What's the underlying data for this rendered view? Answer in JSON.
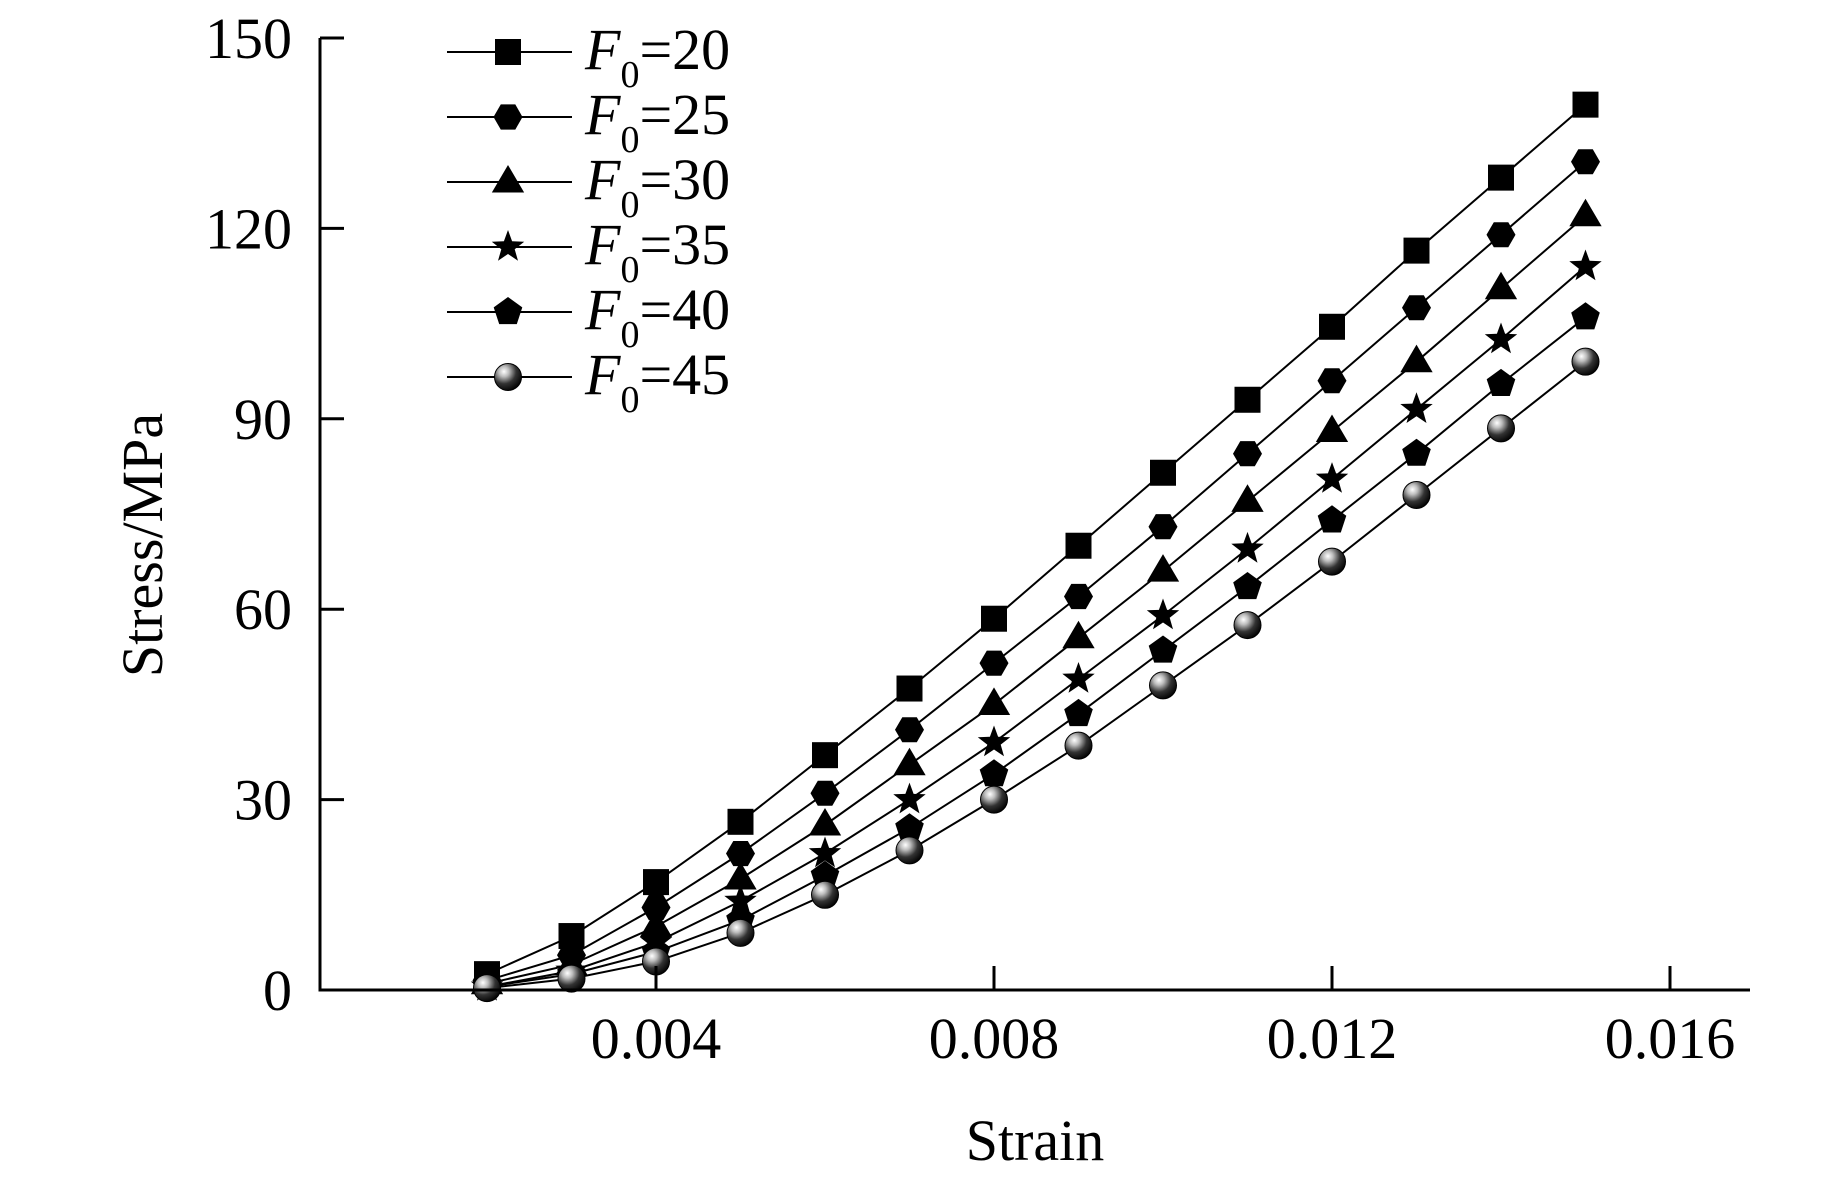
{
  "chart_data": {
    "type": "line",
    "xlabel": "Strain",
    "ylabel": "Stress/MPa",
    "xlim": [
      0.0,
      0.017
    ],
    "ylim": [
      0,
      150
    ],
    "xticks": [
      0.004,
      0.008,
      0.012,
      0.016
    ],
    "xtick_labels": [
      "0.004",
      "0.008",
      "0.012",
      "0.016"
    ],
    "yticks": [
      0,
      30,
      60,
      90,
      120,
      150
    ],
    "ytick_labels": [
      "0",
      "30",
      "60",
      "90",
      "120",
      "150"
    ],
    "grid": false,
    "legend_position": "top-left",
    "x": [
      0.002,
      0.003,
      0.004,
      0.005,
      0.006,
      0.007,
      0.008,
      0.009,
      0.01,
      0.011,
      0.012,
      0.013,
      0.014,
      0.015
    ],
    "series": [
      {
        "name_var": "F",
        "name_sub": "0",
        "name_rest": "=20",
        "marker": "square",
        "values": [
          2.5,
          8.5,
          17,
          26.5,
          37,
          47.5,
          58.5,
          70,
          81.5,
          93,
          104.5,
          116.5,
          128,
          139.5
        ]
      },
      {
        "name_var": "F",
        "name_sub": "0",
        "name_rest": "=25",
        "marker": "hexagon",
        "values": [
          1.5,
          5.5,
          13,
          21.5,
          31,
          41,
          51.5,
          62,
          73,
          84.5,
          96,
          107.5,
          119,
          130.5
        ]
      },
      {
        "name_var": "F",
        "name_sub": "0",
        "name_rest": "=30",
        "marker": "triangle",
        "values": [
          1,
          4,
          10,
          17.5,
          26,
          35.5,
          45,
          55.5,
          66,
          77,
          88,
          99,
          110.5,
          122
        ]
      },
      {
        "name_var": "F",
        "name_sub": "0",
        "name_rest": "=35",
        "marker": "star",
        "values": [
          0.5,
          3,
          7.5,
          14,
          21.5,
          30,
          39,
          49,
          59,
          69.5,
          80.5,
          91.5,
          102.5,
          114
        ]
      },
      {
        "name_var": "F",
        "name_sub": "0",
        "name_rest": "=40",
        "marker": "pentagon",
        "values": [
          0.5,
          2.5,
          6,
          11,
          18,
          25.5,
          34,
          43.5,
          53.5,
          63.5,
          74,
          84.5,
          95.5,
          106
        ]
      },
      {
        "name_var": "F",
        "name_sub": "0",
        "name_rest": "=45",
        "marker": "sphere",
        "values": [
          0.3,
          1.8,
          4.5,
          9,
          15,
          22,
          30,
          38.5,
          48,
          57.5,
          67.5,
          78,
          88.5,
          99
        ]
      }
    ]
  }
}
